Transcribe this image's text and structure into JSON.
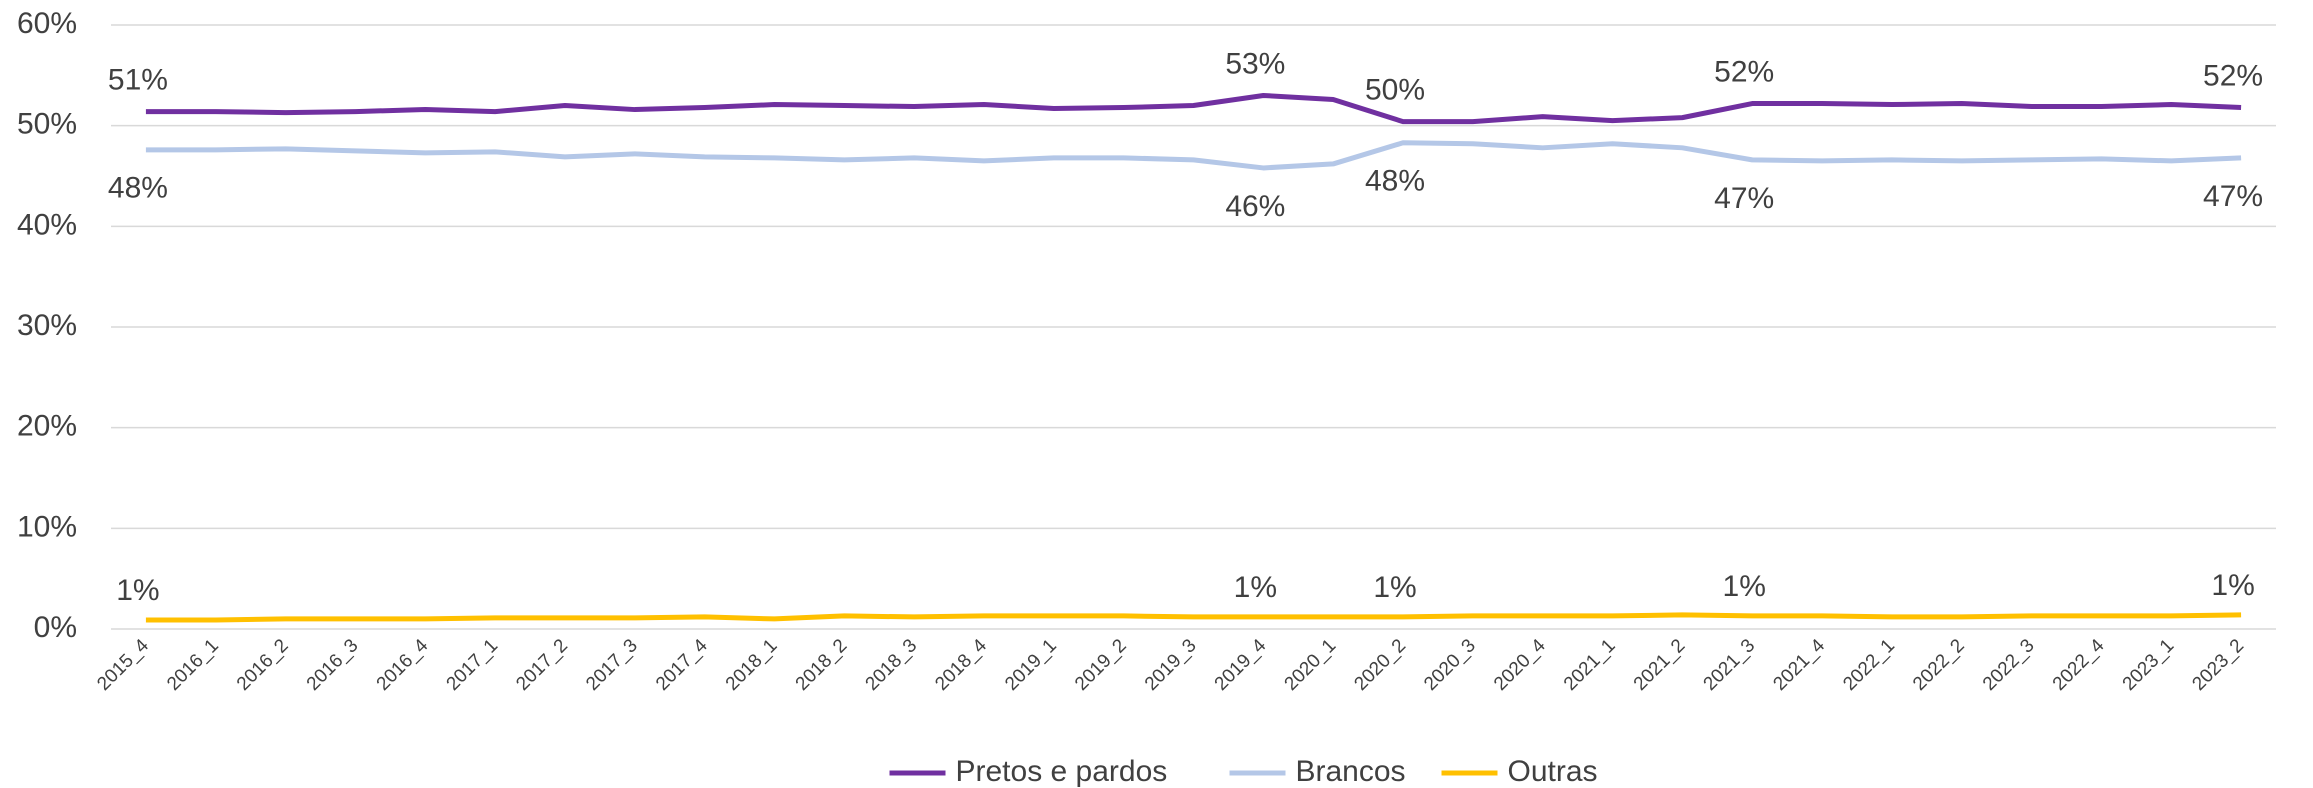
{
  "chart_data": {
    "type": "line",
    "categories": [
      "2015_4",
      "2016_1",
      "2016_2",
      "2016_3",
      "2016_4",
      "2017_1",
      "2017_2",
      "2017_3",
      "2017_4",
      "2018_1",
      "2018_2",
      "2018_3",
      "2018_4",
      "2019_1",
      "2019_2",
      "2019_3",
      "2019_4",
      "2020_1",
      "2020_2",
      "2020_3",
      "2020_4",
      "2021_1",
      "2021_2",
      "2021_3",
      "2021_4",
      "2022_1",
      "2022_2",
      "2022_3",
      "2022_4",
      "2023_1",
      "2023_2"
    ],
    "series": [
      {
        "name": "Pretos e pardos",
        "color": "#7030a0",
        "values": [
          51.4,
          51.4,
          51.3,
          51.4,
          51.6,
          51.4,
          52.0,
          51.6,
          51.8,
          52.1,
          52.0,
          51.9,
          52.1,
          51.7,
          51.8,
          52.0,
          53.0,
          52.6,
          50.4,
          50.4,
          50.9,
          50.5,
          50.8,
          52.2,
          52.2,
          52.1,
          52.2,
          51.9,
          51.9,
          52.1,
          51.8
        ],
        "value_labels": [
          "51%",
          null,
          null,
          null,
          null,
          null,
          null,
          null,
          null,
          null,
          null,
          null,
          null,
          null,
          null,
          null,
          "53%",
          null,
          "50%",
          null,
          null,
          null,
          null,
          "52%",
          null,
          null,
          null,
          null,
          null,
          null,
          "52%"
        ]
      },
      {
        "name": "Brancos",
        "color": "#b4c7e7",
        "values": [
          47.6,
          47.6,
          47.7,
          47.5,
          47.3,
          47.4,
          46.9,
          47.2,
          46.9,
          46.8,
          46.6,
          46.8,
          46.5,
          46.8,
          46.8,
          46.6,
          45.8,
          46.2,
          48.3,
          48.2,
          47.8,
          48.2,
          47.8,
          46.6,
          46.5,
          46.6,
          46.5,
          46.6,
          46.7,
          46.5,
          46.8
        ],
        "value_labels": [
          "48%",
          null,
          null,
          null,
          null,
          null,
          null,
          null,
          null,
          null,
          null,
          null,
          null,
          null,
          null,
          null,
          "46%",
          null,
          "48%",
          null,
          null,
          null,
          null,
          "47%",
          null,
          null,
          null,
          null,
          null,
          null,
          "47%"
        ]
      },
      {
        "name": "Outras",
        "color": "#ffc000",
        "values": [
          0.9,
          0.9,
          1.0,
          1.0,
          1.0,
          1.1,
          1.1,
          1.1,
          1.2,
          1.0,
          1.3,
          1.2,
          1.3,
          1.3,
          1.3,
          1.2,
          1.2,
          1.2,
          1.2,
          1.3,
          1.3,
          1.3,
          1.4,
          1.3,
          1.3,
          1.2,
          1.2,
          1.3,
          1.3,
          1.3,
          1.4
        ],
        "value_labels": [
          "1%",
          null,
          null,
          null,
          null,
          null,
          null,
          null,
          null,
          null,
          null,
          null,
          null,
          null,
          null,
          null,
          "1%",
          null,
          "1%",
          null,
          null,
          null,
          null,
          "1%",
          null,
          null,
          null,
          null,
          null,
          null,
          "1%"
        ]
      }
    ],
    "ylim": [
      0,
      60
    ],
    "yticks": [
      {
        "value": 0,
        "label": "0%"
      },
      {
        "value": 10,
        "label": "10%"
      },
      {
        "value": 20,
        "label": "20%"
      },
      {
        "value": 30,
        "label": "30%"
      },
      {
        "value": 40,
        "label": "40%"
      },
      {
        "value": 50,
        "label": "50%"
      },
      {
        "value": 60,
        "label": "60%"
      }
    ],
    "grid": true,
    "legend": "bottom"
  }
}
